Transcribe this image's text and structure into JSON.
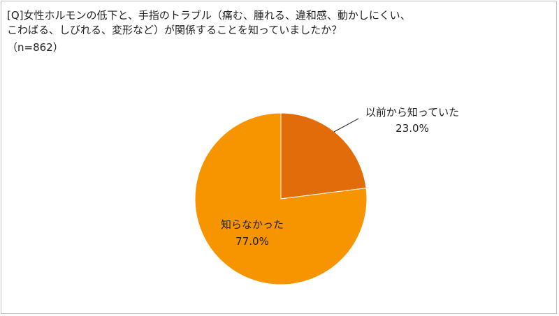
{
  "chart_data": {
    "type": "pie",
    "title": "[Q]女性ホルモンの低下と、手指のトラブル（痛む、腫れる、違和感、動かしにくい、\nこわばる、しびれる、変形など）が関係することを知っていましたか？",
    "subtitle": "（n=862）",
    "slices": [
      {
        "label": "以前から知っていた",
        "value": 23.0,
        "value_label": "23.0%",
        "color": "#e36c0a"
      },
      {
        "label": "知らなかった",
        "value": 77.0,
        "value_label": "77.0%",
        "color": "#f79500"
      }
    ],
    "legend": "none"
  }
}
